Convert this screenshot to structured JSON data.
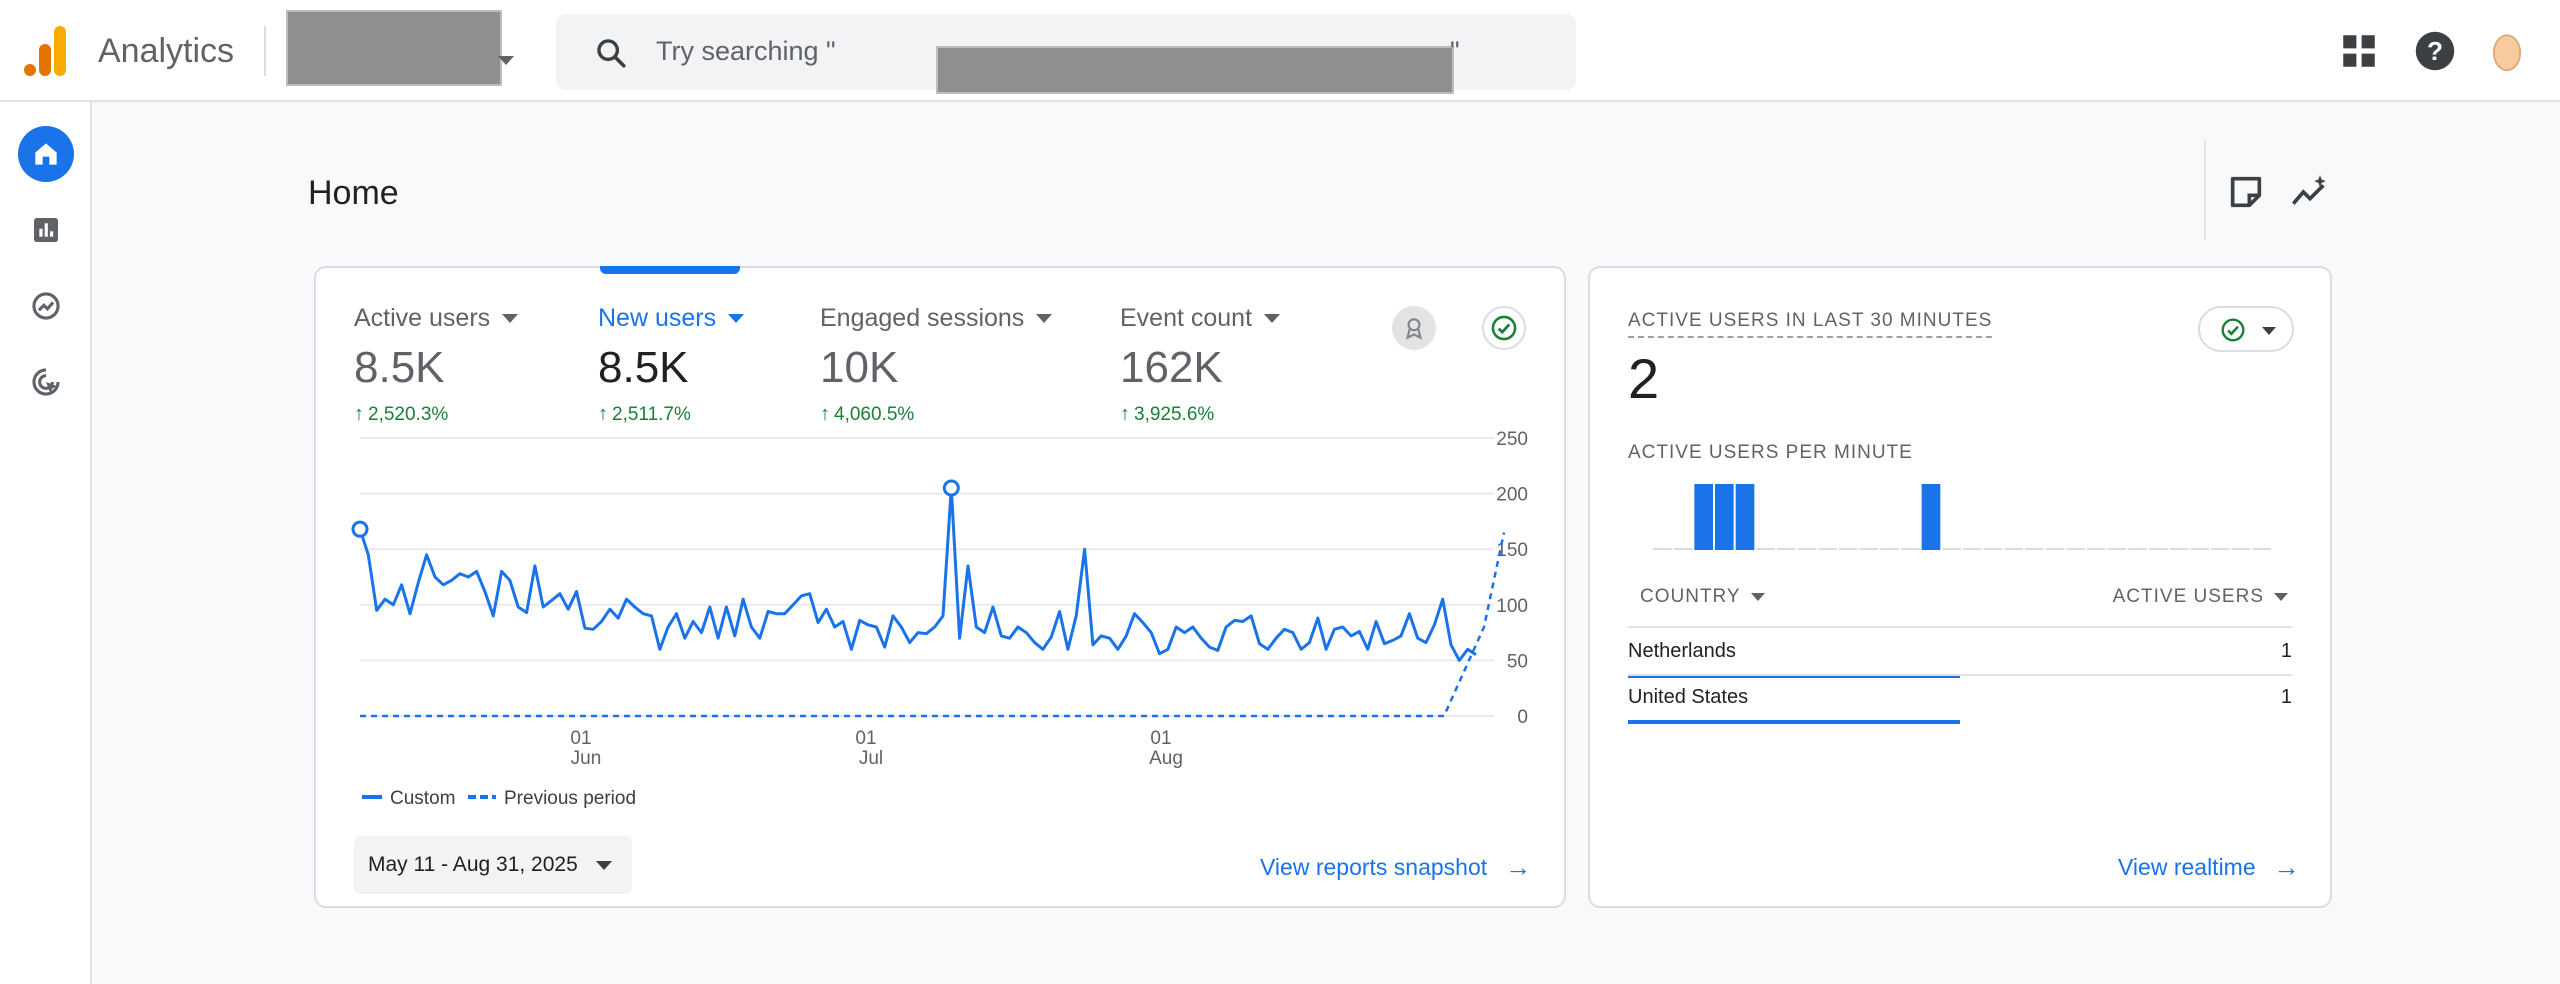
{
  "header": {
    "app_name": "Analytics",
    "search_text": "Try searching \"",
    "search_quote_end": "\""
  },
  "page": {
    "title": "Home"
  },
  "metrics": [
    {
      "label": "Active users",
      "value": "8.5K",
      "change": "2,520.3%"
    },
    {
      "label": "New users",
      "value": "8.5K",
      "change": "2,511.7%"
    },
    {
      "label": "Engaged sessions",
      "value": "10K",
      "change": "4,060.5%"
    },
    {
      "label": "Event count",
      "value": "162K",
      "change": "3,925.6%"
    }
  ],
  "chart_data": {
    "type": "line",
    "y_ticks": [
      "250",
      "200",
      "150",
      "100",
      "50",
      "0"
    ],
    "ylim": [
      0,
      250
    ],
    "x_ticks": [
      {
        "day": "01",
        "month": "Jun"
      },
      {
        "day": "01",
        "month": "Jul"
      },
      {
        "day": "01",
        "month": "Aug"
      }
    ],
    "legend": [
      "Custom",
      "Previous period"
    ],
    "series": [
      {
        "name": "Custom",
        "values": [
          168,
          145,
          95,
          105,
          100,
          118,
          92,
          120,
          145,
          125,
          118,
          122,
          128,
          125,
          130,
          112,
          90,
          130,
          122,
          98,
          93,
          135,
          98,
          104,
          110,
          96,
          112,
          79,
          78,
          85,
          96,
          88,
          105,
          98,
          92,
          90,
          60,
          80,
          92,
          70,
          85,
          75,
          98,
          70,
          98,
          72,
          105,
          80,
          70,
          94,
          92,
          92,
          100,
          108,
          110,
          84,
          96,
          80,
          85,
          60,
          86,
          82,
          80,
          62,
          90,
          80,
          66,
          75,
          74,
          80,
          90,
          205,
          70,
          135,
          80,
          75,
          98,
          72,
          70,
          80,
          75,
          66,
          60,
          71,
          94,
          60,
          90,
          150,
          64,
          72,
          70,
          60,
          72,
          92,
          84,
          75,
          56,
          60,
          80,
          75,
          80,
          70,
          62,
          59,
          80,
          86,
          85,
          90,
          65,
          60,
          70,
          78,
          75,
          60,
          66,
          88,
          60,
          78,
          80,
          72,
          76,
          60,
          85,
          65,
          68,
          72,
          92,
          70,
          66,
          82,
          105,
          64,
          50,
          60,
          55
        ]
      },
      {
        "name": "Previous period",
        "values": []
      }
    ]
  },
  "date_range": "May 11 - Aug 31, 2025",
  "links": {
    "reports": "View reports snapshot",
    "realtime": "View realtime"
  },
  "realtime": {
    "title": "ACTIVE USERS IN LAST 30 MINUTES",
    "value": "2",
    "per_minute_label": "ACTIVE USERS PER MINUTE",
    "per_minute_values": [
      0,
      0,
      1,
      1,
      1,
      0,
      0,
      0,
      0,
      0,
      0,
      0,
      0,
      1,
      0,
      0,
      0,
      0,
      0,
      0,
      0,
      0,
      0,
      0,
      0,
      0,
      0,
      0,
      0,
      0
    ],
    "col_country": "COUNTRY",
    "col_active": "ACTIVE USERS",
    "rows": [
      {
        "country": "Netherlands",
        "count": "1",
        "share": 0.5
      },
      {
        "country": "United States",
        "count": "1",
        "share": 0.5
      }
    ]
  },
  "colors": {
    "accent": "#1a73e8",
    "positive": "#188038"
  }
}
